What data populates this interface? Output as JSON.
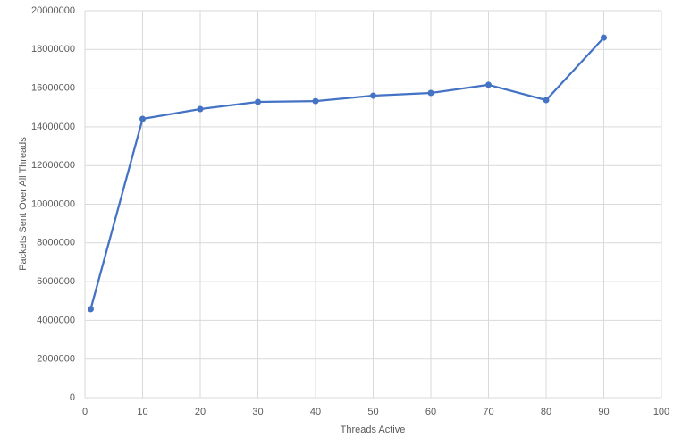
{
  "chart_data": {
    "type": "line",
    "x_label": "Threads Active",
    "y_label": "Packets Sent Over All Threads",
    "x": [
      1,
      10,
      20,
      30,
      40,
      50,
      60,
      70,
      80,
      90
    ],
    "series": [
      {
        "color": "#4472c4",
        "values": [
          4580000,
          14410000,
          14920000,
          15290000,
          15330000,
          15610000,
          15750000,
          16170000,
          15380000,
          18610000
        ]
      }
    ],
    "xlim": [
      0,
      100
    ],
    "xticks": [
      0,
      10,
      20,
      30,
      40,
      50,
      60,
      70,
      80,
      90,
      100
    ],
    "ylim": [
      0,
      20000000
    ],
    "yticks": [
      0,
      2000000,
      4000000,
      6000000,
      8000000,
      10000000,
      12000000,
      14000000,
      16000000,
      18000000,
      20000000
    ],
    "grid": true
  }
}
